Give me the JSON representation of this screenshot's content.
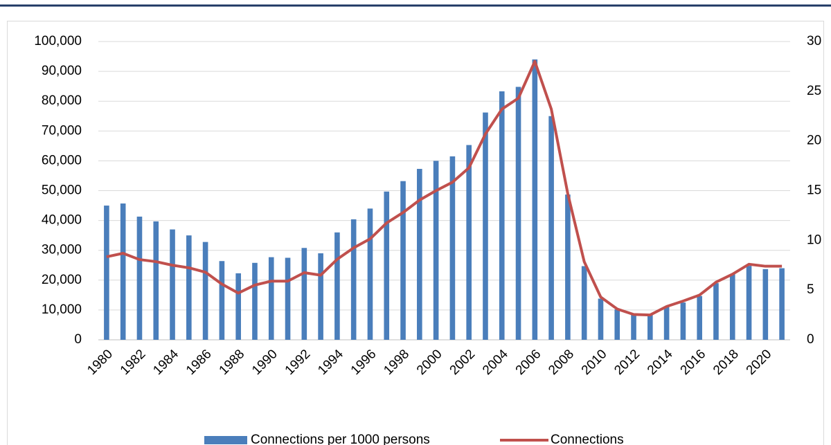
{
  "chart_data": {
    "type": "bar-line",
    "categories": [
      "1980",
      null,
      "1982",
      null,
      "1984",
      null,
      "1986",
      null,
      "1988",
      null,
      "1990",
      null,
      "1992",
      null,
      "1994",
      null,
      "1996",
      null,
      "1998",
      null,
      "2000",
      null,
      "2002",
      null,
      "2004",
      null,
      "2006",
      null,
      "2008",
      null,
      "2010",
      null,
      "2012",
      null,
      "2014",
      null,
      "2016",
      null,
      "2018",
      null,
      "2020",
      null
    ],
    "series": [
      {
        "name": "Connections per 1000 persons",
        "type": "bar",
        "color": "#4a7ebb",
        "values": [
          45000,
          45700,
          41300,
          39700,
          37000,
          35000,
          32800,
          26400,
          22300,
          25800,
          27700,
          27500,
          30800,
          29000,
          36000,
          40400,
          44000,
          49700,
          53200,
          57300,
          60000,
          61500,
          65300,
          76200,
          83300,
          84800,
          94000,
          75000,
          48700,
          24700,
          13800,
          10200,
          8600,
          8500,
          11000,
          12500,
          14700,
          19000,
          22000,
          24800,
          23700,
          24000
        ]
      },
      {
        "name": "Connections",
        "type": "line",
        "axis": "y2",
        "color": "#c0504d",
        "values": [
          8.35,
          8.7,
          8.07,
          7.86,
          7.5,
          7.24,
          6.8,
          5.6,
          4.7,
          5.5,
          5.9,
          5.9,
          6.75,
          6.5,
          8.1,
          9.25,
          10.15,
          11.75,
          12.8,
          14.05,
          15.0,
          15.85,
          17.3,
          20.7,
          23.2,
          24.3,
          28.0,
          23.2,
          14.7,
          7.85,
          4.3,
          3.1,
          2.55,
          2.5,
          3.35,
          3.9,
          4.5,
          5.8,
          6.6,
          7.6,
          7.4,
          7.4
        ]
      }
    ],
    "ylim": [
      0,
      100000
    ],
    "yticks": [
      0,
      {
        "value": 10000,
        "label": "10,000"
      },
      {
        "value": 20000,
        "label": "20,000"
      },
      {
        "value": 30000,
        "label": "30,000"
      },
      {
        "value": 40000,
        "label": "40,000"
      },
      {
        "value": 50000,
        "label": "50,000"
      },
      {
        "value": 60000,
        "label": "60,000"
      },
      {
        "value": 70000,
        "label": "70,000"
      },
      {
        "value": 80000,
        "label": "80,000"
      },
      {
        "value": 90000,
        "label": "90,000"
      },
      {
        "value": 100000,
        "label": "100,000"
      }
    ],
    "y2lim": [
      0,
      30
    ],
    "y2ticks": [
      0,
      5,
      10,
      15,
      20,
      25,
      30
    ],
    "grid": true,
    "legend": "bottom"
  }
}
